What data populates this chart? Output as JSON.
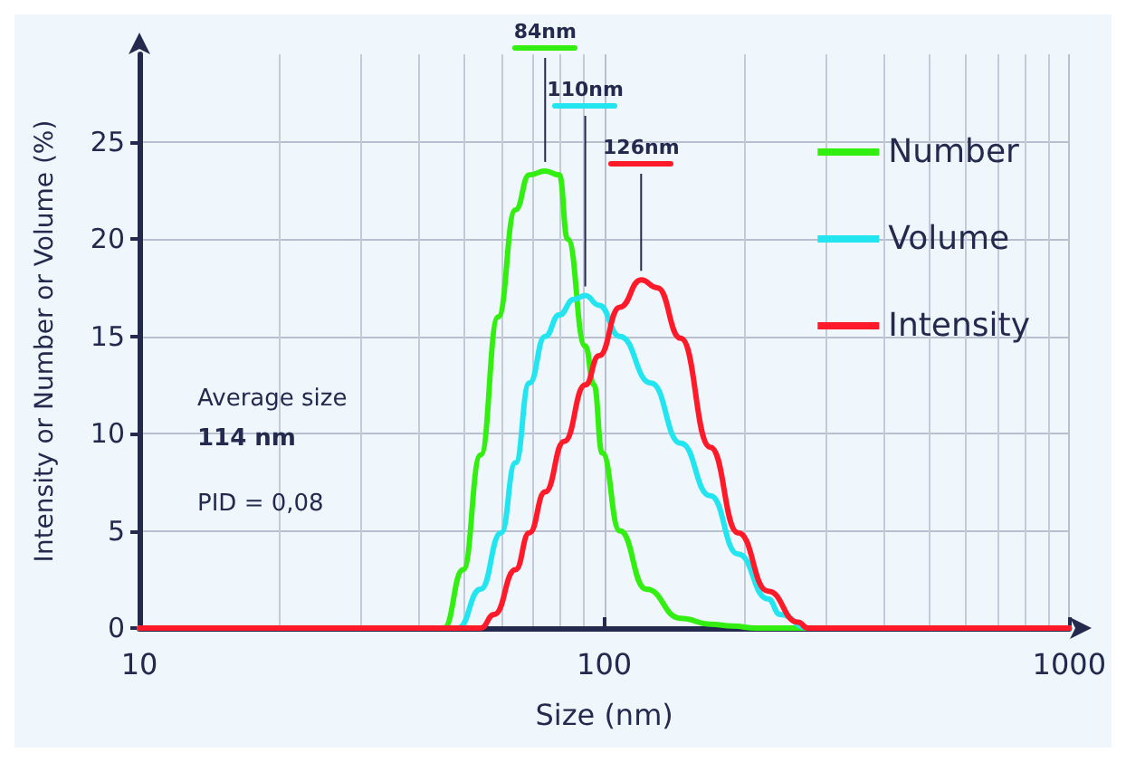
{
  "chart_data": {
    "type": "line",
    "xlabel": "Size (nm)",
    "ylabel": "Intensity or Number or Volume (%)",
    "log": "x",
    "xlim": [
      10,
      1000
    ],
    "xticks": [
      10,
      100,
      1000
    ],
    "ylim": [
      0,
      29.5
    ],
    "yticks": [
      0,
      5,
      10,
      15,
      20,
      25
    ],
    "grid": true,
    "legend": "top right",
    "marker": "none",
    "line_style": "solid",
    "series": [
      {
        "name": "Number",
        "color": "#33ee11",
        "x": [
          10,
          45.2,
          49.7,
          54.2,
          59.1,
          64.4,
          69,
          74.6,
          80,
          83.4,
          91,
          95,
          99,
          108,
          123,
          146,
          169,
          189,
          212,
          1000
        ],
        "values": [
          0,
          0,
          3,
          8.9,
          16,
          21.5,
          23.3,
          23.5,
          23.3,
          20,
          14.5,
          12.5,
          9,
          5,
          2,
          0.5,
          0.2,
          0.1,
          0,
          0
        ]
      },
      {
        "name": "Volume",
        "color": "#22e5f0",
        "x": [
          10,
          48.5,
          54.2,
          60,
          64.4,
          69,
          74.6,
          80,
          86,
          91,
          97.4,
          108,
          126,
          146,
          169,
          194,
          225,
          239,
          274,
          1000
        ],
        "values": [
          0,
          0,
          2,
          4.9,
          8.5,
          12.6,
          15,
          16.1,
          16.9,
          17.1,
          16.6,
          15,
          12.6,
          9.5,
          6.8,
          3.8,
          1.5,
          0.7,
          0,
          0
        ]
      },
      {
        "name": "Intensity",
        "color": "#ff1a2a",
        "x": [
          10,
          54.2,
          58,
          64.4,
          69,
          74.6,
          82,
          91,
          97.4,
          108,
          120,
          130,
          146,
          169,
          194,
          225,
          261,
          274,
          1000
        ],
        "values": [
          0,
          0,
          0.7,
          3,
          4.9,
          7,
          9.6,
          12.5,
          14,
          16.5,
          17.9,
          17.5,
          14.9,
          9.3,
          4.9,
          1.9,
          0.3,
          0,
          0
        ]
      }
    ],
    "annotations": [
      {
        "text": "84nm",
        "x": 74.6,
        "y": 23.5
      },
      {
        "text": "110nm",
        "x": 91,
        "y": 17.1
      },
      {
        "text": "126nm",
        "x": 120,
        "y": 17.9
      },
      "Average size",
      "114 nm",
      "PID = 0,08"
    ]
  }
}
